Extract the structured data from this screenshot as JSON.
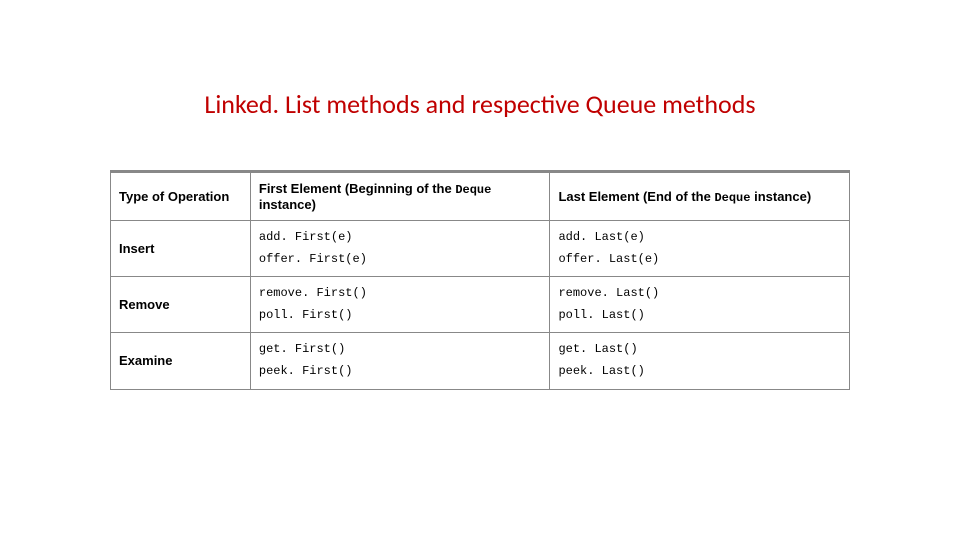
{
  "title": "Linked. List methods and respective Queue methods",
  "colors": {
    "title": "#c00000",
    "border": "#888888",
    "text": "#000000",
    "background": "#ffffff"
  },
  "table": {
    "header": {
      "col1": "Type of Operation",
      "col2_prefix": "First Element (Beginning of the ",
      "col2_code": "Deque",
      "col2_suffix": " instance)",
      "col3_prefix": "Last Element (End of the ",
      "col3_code": "Deque",
      "col3_suffix": " instance)"
    },
    "rows": [
      {
        "op": "Insert",
        "first_a": "add. First(e)",
        "first_b": "offer. First(e)",
        "last_a": "add. Last(e)",
        "last_b": "offer. Last(e)"
      },
      {
        "op": "Remove",
        "first_a": "remove. First()",
        "first_b": "poll. First()",
        "last_a": "remove. Last()",
        "last_b": "poll. Last()"
      },
      {
        "op": "Examine",
        "first_a": "get. First()",
        "first_b": "peek. First()",
        "last_a": "get. Last()",
        "last_b": "peek. Last()"
      }
    ]
  }
}
